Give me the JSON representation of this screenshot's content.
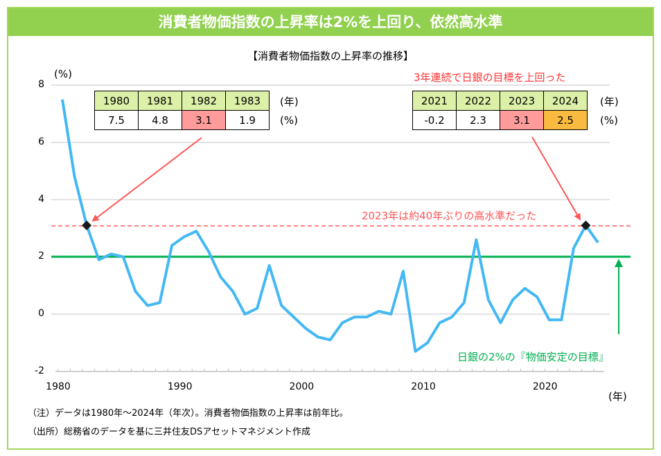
{
  "title": "消費者物価指数の上昇率は2%を上回り、依然高水準",
  "colors": {
    "frame": "#92d050",
    "line": "#44b8f3",
    "target": "#00b050",
    "highlight": "#ff5555",
    "cell_pink": "#ff9b9b",
    "cell_orange": "#f9bb3f",
    "header_cell": "#dcf0a8"
  },
  "chart_data": {
    "type": "line",
    "title": "【消費者物価指数の上昇率の推移】",
    "ylabel": "(%)",
    "xlabel": "(年)",
    "ylim": [
      -2,
      8
    ],
    "yticks": [
      "8",
      "6",
      "4",
      "2",
      "0",
      "-2"
    ],
    "xlim": [
      1980,
      2024
    ],
    "xticks": [
      "1980",
      "1990",
      "2000",
      "2010",
      "2020"
    ],
    "grid": true,
    "x": [
      1980,
      1981,
      1982,
      1983,
      1984,
      1985,
      1986,
      1987,
      1988,
      1989,
      1990,
      1991,
      1992,
      1993,
      1994,
      1995,
      1996,
      1997,
      1998,
      1999,
      2000,
      2001,
      2002,
      2003,
      2004,
      2005,
      2006,
      2007,
      2008,
      2009,
      2010,
      2011,
      2012,
      2013,
      2014,
      2015,
      2016,
      2017,
      2018,
      2019,
      2020,
      2021,
      2022,
      2023,
      2024
    ],
    "values": [
      7.5,
      4.8,
      3.1,
      1.9,
      2.1,
      2.0,
      0.8,
      0.3,
      0.4,
      2.4,
      2.7,
      2.9,
      2.2,
      1.3,
      0.8,
      0.0,
      0.2,
      1.7,
      0.3,
      -0.1,
      -0.5,
      -0.8,
      -0.9,
      -0.3,
      -0.1,
      -0.1,
      0.1,
      0.0,
      1.5,
      -1.3,
      -1.0,
      -0.3,
      -0.1,
      0.4,
      2.6,
      0.5,
      -0.3,
      0.5,
      0.9,
      0.6,
      -0.2,
      -0.2,
      2.3,
      3.1,
      2.5
    ],
    "reference_lines": [
      {
        "value": 2,
        "label": "日銀の2%の『物価安定の目標』"
      },
      {
        "value": 3.1,
        "label": "2023年は約40年ぶりの高水準だった"
      }
    ],
    "highlighted_points": [
      1982,
      2023
    ],
    "annotation": "3年連続で日銀の目標を上回った"
  },
  "table_left": {
    "years": [
      "1980",
      "1981",
      "1982",
      "1983"
    ],
    "values": [
      "7.5",
      "4.8",
      "3.1",
      "1.9"
    ],
    "year_unit": "(年)",
    "value_unit": "(%)"
  },
  "table_right": {
    "years": [
      "2021",
      "2022",
      "2023",
      "2024"
    ],
    "values": [
      "-0.2",
      "2.3",
      "3.1",
      "2.5"
    ],
    "year_unit": "(年)",
    "value_unit": "(%)"
  },
  "notes": [
    "（注）データは1980年～2024年（年次）。消費者物価指数の上昇率は前年比。",
    "（出所）総務省のデータを基に三井住友DSアセットマネジメント作成"
  ]
}
